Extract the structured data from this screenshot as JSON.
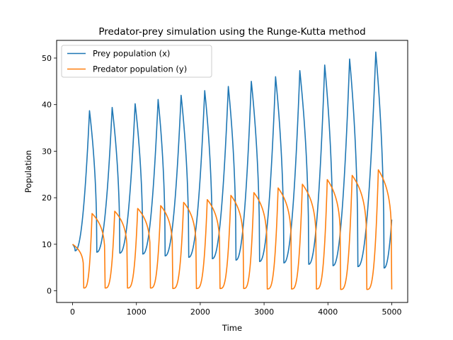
{
  "chart_data": {
    "type": "line",
    "title": "Predator-prey simulation using the Runge-Kutta method",
    "xlabel": "Time",
    "ylabel": "Population",
    "xlim": [
      -250,
      5250
    ],
    "ylim": [
      -2.5,
      53.8
    ],
    "xticks": [
      0,
      1000,
      2000,
      3000,
      4000,
      5000
    ],
    "yticks": [
      0,
      10,
      20,
      30,
      40,
      50
    ],
    "grid": false,
    "legend_position": "top-left",
    "series": [
      {
        "name": "Prey population (x)",
        "color": "#1f77b4",
        "peaks": [
          [
            265,
            38.7
          ],
          [
            620,
            39.4
          ],
          [
            980,
            40.2
          ],
          [
            1340,
            41.1
          ],
          [
            1700,
            42.0
          ],
          [
            2070,
            43.0
          ],
          [
            2440,
            43.9
          ],
          [
            2800,
            45.0
          ],
          [
            3180,
            46.0
          ],
          [
            3560,
            47.3
          ],
          [
            3950,
            48.5
          ],
          [
            4340,
            49.8
          ],
          [
            4750,
            51.3
          ]
        ],
        "troughs": [
          [
            40,
            8.6
          ],
          [
            380,
            8.3
          ],
          [
            740,
            8.1
          ],
          [
            1100,
            7.9
          ],
          [
            1450,
            7.5
          ],
          [
            1820,
            7.2
          ],
          [
            2190,
            6.9
          ],
          [
            2560,
            6.6
          ],
          [
            2930,
            6.3
          ],
          [
            3310,
            6.0
          ],
          [
            3700,
            5.7
          ],
          [
            4080,
            5.4
          ],
          [
            4470,
            5.2
          ],
          [
            4880,
            4.9
          ]
        ],
        "start": [
          0,
          10
        ],
        "end": [
          5000,
          15.3
        ]
      },
      {
        "name": "Predator population (y)",
        "color": "#ff7f0e",
        "peaks": [
          [
            305,
            16.6
          ],
          [
            660,
            17.1
          ],
          [
            1020,
            17.7
          ],
          [
            1380,
            18.3
          ],
          [
            1740,
            19.0
          ],
          [
            2110,
            19.6
          ],
          [
            2480,
            20.5
          ],
          [
            2840,
            21.1
          ],
          [
            3220,
            22.1
          ],
          [
            3600,
            22.9
          ],
          [
            3990,
            23.9
          ],
          [
            4380,
            24.8
          ],
          [
            4790,
            26.0
          ]
        ],
        "troughs": [
          [
            175,
            0.6
          ],
          [
            510,
            0.6
          ],
          [
            860,
            0.6
          ],
          [
            1220,
            0.6
          ],
          [
            1570,
            0.5
          ],
          [
            1940,
            0.5
          ],
          [
            2310,
            0.5
          ],
          [
            2680,
            0.5
          ],
          [
            3050,
            0.4
          ],
          [
            3430,
            0.4
          ],
          [
            3820,
            0.4
          ],
          [
            4200,
            0.3
          ],
          [
            4610,
            0.3
          ]
        ],
        "start": [
          0,
          10
        ],
        "end": [
          5000,
          0.3
        ]
      }
    ]
  }
}
